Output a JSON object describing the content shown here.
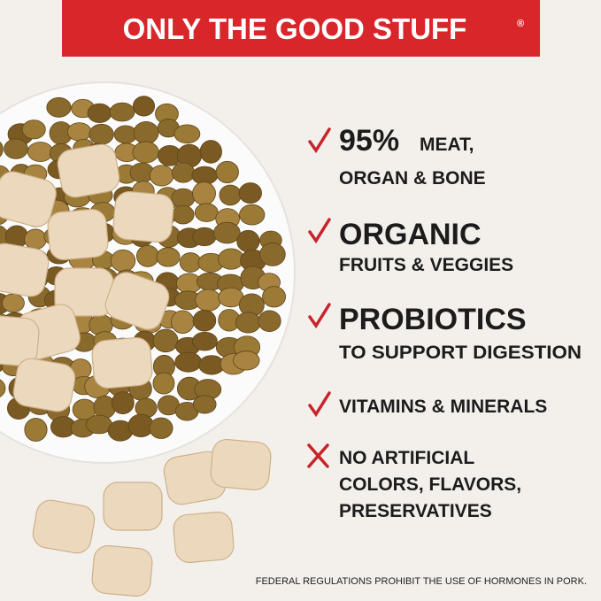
{
  "banner": {
    "title": "ONLY THE GOOD STUFF",
    "mark": "®"
  },
  "features": [
    {
      "lines": [
        "95%",
        "MEAT,",
        "ORGAN & BONE"
      ]
    },
    {
      "lines": [
        "ORGANIC",
        "FRUITS & VEGGIES"
      ]
    },
    {
      "lines": [
        "PROBIOTICS",
        "TO SUPPORT DIGESTION"
      ]
    },
    {
      "lines": [
        "VITAMINS & MINERALS"
      ]
    },
    {
      "lines": [
        "NO ARTIFICIAL",
        "COLORS, FLAVORS,",
        "PRESERVATIVES"
      ]
    }
  ],
  "footnote": "FEDERAL REGULATIONS PROHIBIT THE USE OF HORMONES IN PORK."
}
